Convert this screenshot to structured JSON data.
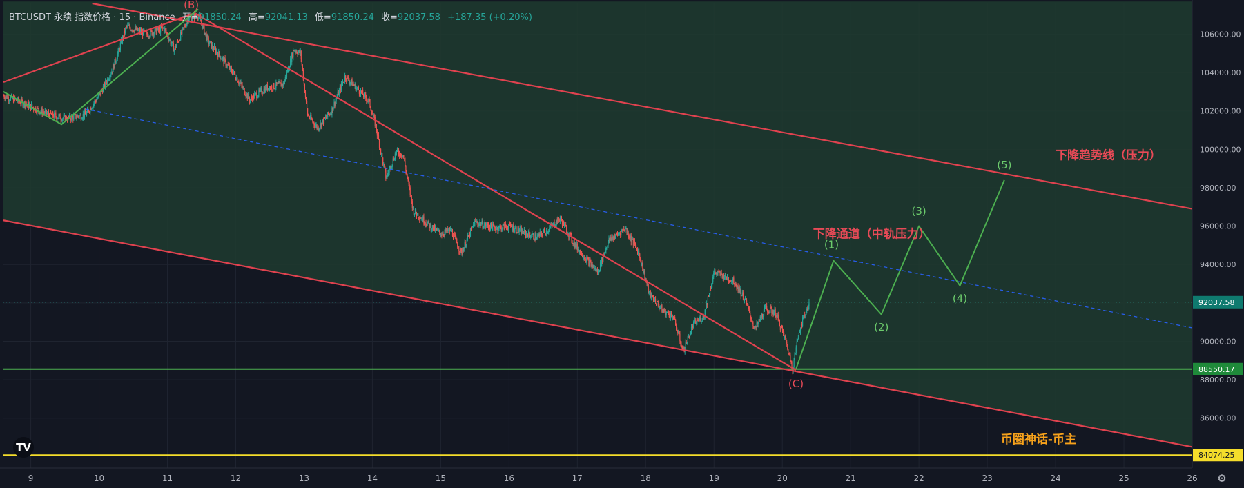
{
  "header": {
    "symbol": "BTCUSDT 永续 指数价格 · 15 · Binance",
    "open_label": "开=",
    "open": "91850.24",
    "high_label": "高=",
    "high": "92041.13",
    "low_label": "低=",
    "low": "91850.24",
    "close_label": "收=",
    "close": "92037.58",
    "change": "+187.35 (+0.20%)"
  },
  "colors": {
    "background": "#131722",
    "channel_fill": "#1e3b2f",
    "trendline": "#e0424f",
    "wave": "#4caf50",
    "midline": "#2962ff",
    "support": "#4caf50",
    "bottom_line": "#f5dd2b",
    "annotation_red": "#e84a57",
    "annotation_green": "#6ccb6c",
    "annotation_orange": "#f7a21b",
    "candle_up": "#26a69a",
    "candle_down": "#ef5350"
  },
  "branding": {
    "logo_icon": "tradingview-logo-icon",
    "settings_icon": "gear-icon"
  },
  "chart_data": {
    "type": "candlestick",
    "symbol": "BTCUSDT",
    "interval": "15",
    "exchange": "Binance",
    "y_axis": {
      "ylim": [
        83400,
        107600
      ],
      "ticks": [
        "106000.00",
        "104000.00",
        "102000.00",
        "100000.00",
        "98000.00",
        "96000.00",
        "94000.00",
        "92000.00",
        "90000.00",
        "88000.00",
        "86000.00"
      ]
    },
    "x_axis": {
      "xlim": [
        8.6,
        26.0
      ],
      "ticks": [
        9,
        10,
        11,
        12,
        13,
        14,
        15,
        16,
        17,
        18,
        19,
        20,
        21,
        22,
        23,
        24,
        25,
        26
      ],
      "tick_labels": [
        "9",
        "10",
        "11",
        "12",
        "13",
        "14",
        "15",
        "16",
        "17",
        "18",
        "19",
        "20",
        "21",
        "22",
        "23",
        "24",
        "25",
        "26"
      ]
    },
    "price_path": [
      {
        "x": 8.6,
        "y": 102800
      },
      {
        "x": 8.9,
        "y": 102400
      },
      {
        "x": 9.2,
        "y": 101900
      },
      {
        "x": 9.5,
        "y": 101600
      },
      {
        "x": 9.8,
        "y": 101800
      },
      {
        "x": 10.0,
        "y": 102800
      },
      {
        "x": 10.2,
        "y": 104200
      },
      {
        "x": 10.4,
        "y": 106400
      },
      {
        "x": 10.7,
        "y": 106000
      },
      {
        "x": 10.95,
        "y": 106300
      },
      {
        "x": 11.1,
        "y": 105200
      },
      {
        "x": 11.3,
        "y": 106800
      },
      {
        "x": 11.45,
        "y": 107000
      },
      {
        "x": 11.6,
        "y": 105600
      },
      {
        "x": 11.85,
        "y": 104500
      },
      {
        "x": 12.0,
        "y": 103800
      },
      {
        "x": 12.2,
        "y": 102600
      },
      {
        "x": 12.45,
        "y": 103200
      },
      {
        "x": 12.7,
        "y": 103400
      },
      {
        "x": 12.85,
        "y": 105200
      },
      {
        "x": 12.95,
        "y": 105000
      },
      {
        "x": 13.05,
        "y": 101800
      },
      {
        "x": 13.2,
        "y": 101100
      },
      {
        "x": 13.4,
        "y": 102000
      },
      {
        "x": 13.6,
        "y": 103800
      },
      {
        "x": 13.85,
        "y": 102900
      },
      {
        "x": 13.95,
        "y": 102500
      },
      {
        "x": 14.05,
        "y": 101200
      },
      {
        "x": 14.2,
        "y": 98500
      },
      {
        "x": 14.35,
        "y": 99900
      },
      {
        "x": 14.45,
        "y": 99700
      },
      {
        "x": 14.6,
        "y": 96800
      },
      {
        "x": 14.85,
        "y": 96000
      },
      {
        "x": 15.0,
        "y": 95600
      },
      {
        "x": 15.15,
        "y": 95800
      },
      {
        "x": 15.3,
        "y": 94600
      },
      {
        "x": 15.5,
        "y": 96200
      },
      {
        "x": 15.8,
        "y": 95900
      },
      {
        "x": 16.0,
        "y": 96000
      },
      {
        "x": 16.2,
        "y": 95700
      },
      {
        "x": 16.4,
        "y": 95400
      },
      {
        "x": 16.6,
        "y": 95900
      },
      {
        "x": 16.75,
        "y": 96400
      },
      {
        "x": 16.95,
        "y": 95100
      },
      {
        "x": 17.15,
        "y": 94200
      },
      {
        "x": 17.3,
        "y": 93600
      },
      {
        "x": 17.45,
        "y": 95200
      },
      {
        "x": 17.7,
        "y": 95900
      },
      {
        "x": 17.9,
        "y": 94600
      },
      {
        "x": 18.05,
        "y": 92500
      },
      {
        "x": 18.25,
        "y": 91600
      },
      {
        "x": 18.4,
        "y": 91300
      },
      {
        "x": 18.55,
        "y": 89500
      },
      {
        "x": 18.7,
        "y": 90900
      },
      {
        "x": 18.85,
        "y": 91300
      },
      {
        "x": 19.0,
        "y": 93600
      },
      {
        "x": 19.15,
        "y": 93400
      },
      {
        "x": 19.3,
        "y": 93100
      },
      {
        "x": 19.45,
        "y": 92200
      },
      {
        "x": 19.6,
        "y": 90600
      },
      {
        "x": 19.75,
        "y": 91700
      },
      {
        "x": 19.9,
        "y": 91500
      },
      {
        "x": 20.05,
        "y": 90000
      },
      {
        "x": 20.15,
        "y": 88600
      },
      {
        "x": 20.25,
        "y": 90600
      },
      {
        "x": 20.35,
        "y": 91600
      },
      {
        "x": 20.4,
        "y": 92040
      }
    ],
    "channel": {
      "upper": [
        {
          "x": 8.6,
          "y": 108200
        },
        {
          "x": 26.0,
          "y": 96900
        }
      ],
      "lower": [
        {
          "x": 8.6,
          "y": 96300
        },
        {
          "x": 26.0,
          "y": 84500
        }
      ],
      "mid": [
        {
          "x": 9.8,
          "y": 102100
        },
        {
          "x": 26.0,
          "y": 90700
        }
      ],
      "fill_polygon": [
        {
          "x": 8.6,
          "y": 107700
        },
        {
          "x": 26.0,
          "y": 107700
        },
        {
          "x": 26.0,
          "y": 96900
        },
        {
          "x": 26.0,
          "y": 84500
        },
        {
          "x": 8.6,
          "y": 96300
        }
      ]
    },
    "red_lines": [
      {
        "name": "channel-upper",
        "points": [
          {
            "x": 9.9,
            "y": 107600
          },
          {
            "x": 26.0,
            "y": 96900
          }
        ]
      },
      {
        "name": "channel-lower",
        "points": [
          {
            "x": 8.6,
            "y": 96300
          },
          {
            "x": 26.0,
            "y": 84500
          }
        ]
      },
      {
        "name": "top-left-trend",
        "points": [
          {
            "x": 8.6,
            "y": 103500
          },
          {
            "x": 11.4,
            "y": 107100
          }
        ]
      },
      {
        "name": "b-to-c-trend",
        "points": [
          {
            "x": 11.4,
            "y": 107100
          },
          {
            "x": 20.2,
            "y": 88500
          }
        ]
      }
    ],
    "green_waves": [
      {
        "name": "early-waves",
        "points": [
          {
            "x": 8.6,
            "y": 103000
          },
          {
            "x": 9.45,
            "y": 101300
          },
          {
            "x": 11.35,
            "y": 107000
          },
          {
            "x": 11.45,
            "y": 107300
          }
        ]
      },
      {
        "name": "projection",
        "points": [
          {
            "x": 20.2,
            "y": 88550
          },
          {
            "x": 20.75,
            "y": 94200
          },
          {
            "x": 21.45,
            "y": 91400
          },
          {
            "x": 22.0,
            "y": 96000
          },
          {
            "x": 22.6,
            "y": 92900
          },
          {
            "x": 23.25,
            "y": 98400
          }
        ]
      }
    ],
    "horizontal_lines": [
      {
        "name": "support",
        "y": 88550.17,
        "label": "88550.17",
        "color": "#4caf50"
      },
      {
        "name": "current",
        "y": 92037.58,
        "label": "92037.58",
        "color": "#26a69a"
      },
      {
        "name": "floor",
        "y": 84074.25,
        "label": "84074.25",
        "color": "#f5dd2b"
      }
    ],
    "annotations": [
      {
        "name": "wave-b",
        "text": "(B)",
        "x": 11.35,
        "y": 107350,
        "color": "#e84a57"
      },
      {
        "name": "wave-c",
        "text": "(C)",
        "x": 20.2,
        "y": 87600,
        "color": "#e84a57"
      },
      {
        "name": "wave-1",
        "text": "(1)",
        "x": 20.72,
        "y": 94850,
        "color": "#6ccb6c"
      },
      {
        "name": "wave-2",
        "text": "(2)",
        "x": 21.45,
        "y": 90550,
        "color": "#6ccb6c"
      },
      {
        "name": "wave-3",
        "text": "(3)",
        "x": 22.0,
        "y": 96600,
        "color": "#6ccb6c"
      },
      {
        "name": "wave-4",
        "text": "(4)",
        "x": 22.6,
        "y": 92050,
        "color": "#6ccb6c"
      },
      {
        "name": "wave-5",
        "text": "(5)",
        "x": 23.25,
        "y": 99000,
        "color": "#6ccb6c"
      },
      {
        "name": "label-trendline",
        "text": "下降趋势线（压力）",
        "x": 24.0,
        "y": 99500,
        "color": "#e84a57"
      },
      {
        "name": "label-channel",
        "text": "下降通道（中轨压力）",
        "x": 20.45,
        "y": 95400,
        "color": "#e84a57"
      },
      {
        "name": "label-signature",
        "text": "币圈神话-币主",
        "x": 23.2,
        "y": 84700,
        "color": "#f7a21b"
      }
    ]
  }
}
